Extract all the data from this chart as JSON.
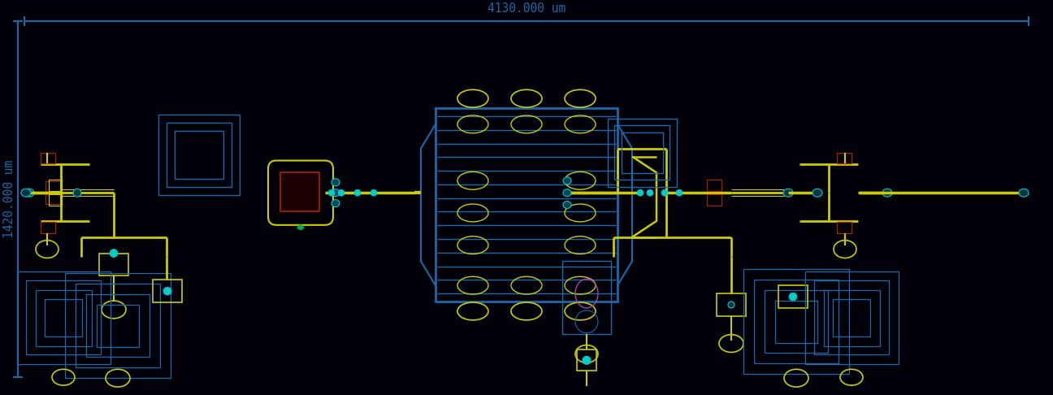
{
  "bg_color": "#000008",
  "blue": "#1a6aaa",
  "yellow": "#cccc00",
  "cyan": "#00cccc",
  "red": "#aa2200",
  "magenta": "#aa44aa",
  "green": "#00aa44",
  "fig_width": 12.96,
  "fig_height": 4.86,
  "width_label": "4130.000 um",
  "height_label": "1420.000 um"
}
